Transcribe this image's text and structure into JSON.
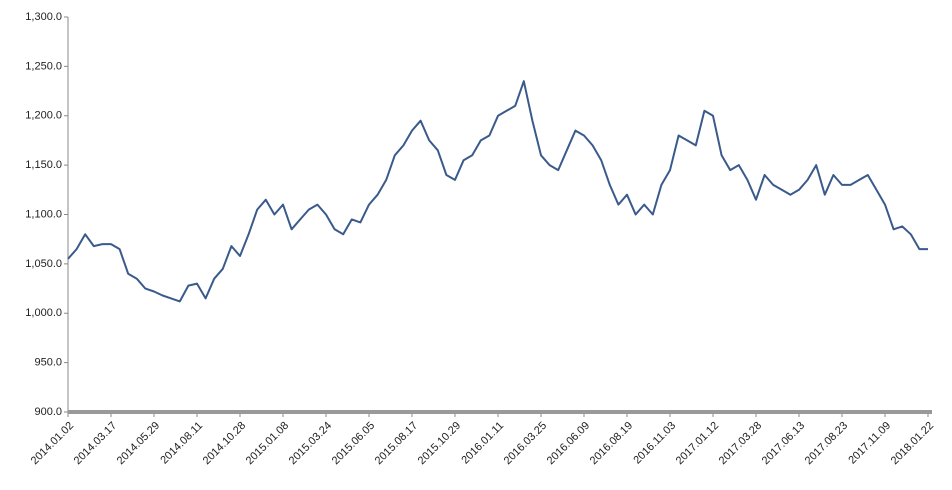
{
  "chart_data": {
    "type": "line",
    "categories": [
      "2014.01.02",
      null,
      null,
      null,
      null,
      "2014.03.17",
      null,
      null,
      null,
      null,
      "2014.05.29",
      null,
      null,
      null,
      null,
      "2014.08.11",
      null,
      null,
      null,
      null,
      "2014.10.28",
      null,
      null,
      null,
      null,
      "2015.01.08",
      null,
      null,
      null,
      null,
      "2015.03.24",
      null,
      null,
      null,
      null,
      "2015.06.05",
      null,
      null,
      null,
      null,
      "2015.08.17",
      null,
      null,
      null,
      null,
      "2015.10.29",
      null,
      null,
      null,
      null,
      "2016.01.11",
      null,
      null,
      null,
      null,
      "2016.03.25",
      null,
      null,
      null,
      null,
      "2016.06.09",
      null,
      null,
      null,
      null,
      "2016.08.19",
      null,
      null,
      null,
      null,
      "2016.11.03",
      null,
      null,
      null,
      null,
      "2017.01.12",
      null,
      null,
      null,
      null,
      "2017.03.28",
      null,
      null,
      null,
      null,
      "2017.06.13",
      null,
      null,
      null,
      null,
      "2017.08.23",
      null,
      null,
      null,
      null,
      "2017.11.09",
      null,
      null,
      null,
      null,
      "2018.01.22"
    ],
    "values": [
      1055,
      1065,
      1080,
      1068,
      1070,
      1070,
      1065,
      1040,
      1035,
      1025,
      1022,
      1018,
      1015,
      1012,
      1028,
      1030,
      1015,
      1035,
      1045,
      1068,
      1058,
      1080,
      1105,
      1115,
      1100,
      1110,
      1085,
      1095,
      1105,
      1110,
      1100,
      1085,
      1080,
      1095,
      1092,
      1110,
      1120,
      1135,
      1160,
      1170,
      1185,
      1195,
      1175,
      1165,
      1140,
      1135,
      1155,
      1160,
      1175,
      1180,
      1200,
      1205,
      1210,
      1235,
      1195,
      1160,
      1150,
      1145,
      1165,
      1185,
      1180,
      1170,
      1155,
      1130,
      1110,
      1120,
      1100,
      1110,
      1100,
      1130,
      1145,
      1180,
      1175,
      1170,
      1205,
      1200,
      1160,
      1145,
      1150,
      1135,
      1115,
      1140,
      1130,
      1125,
      1120,
      1125,
      1135,
      1150,
      1120,
      1140,
      1130,
      1130,
      1135,
      1140,
      1125,
      1110,
      1085,
      1088,
      1080,
      1065,
      1065
    ],
    "color": "#3a5a8c",
    "ylim": [
      900,
      1300
    ],
    "yticks": [
      {
        "value": 900,
        "label": "900.0"
      },
      {
        "value": 950,
        "label": "950.0"
      },
      {
        "value": 1000,
        "label": "1,000.0"
      },
      {
        "value": 1050,
        "label": "1,050.0"
      },
      {
        "value": 1100,
        "label": "1,100.0"
      },
      {
        "value": 1150,
        "label": "1,150.0"
      },
      {
        "value": 1200,
        "label": "1,200.0"
      },
      {
        "value": 1250,
        "label": "1,250.0"
      },
      {
        "value": 1300,
        "label": "1,300.0"
      }
    ],
    "grid": false
  }
}
